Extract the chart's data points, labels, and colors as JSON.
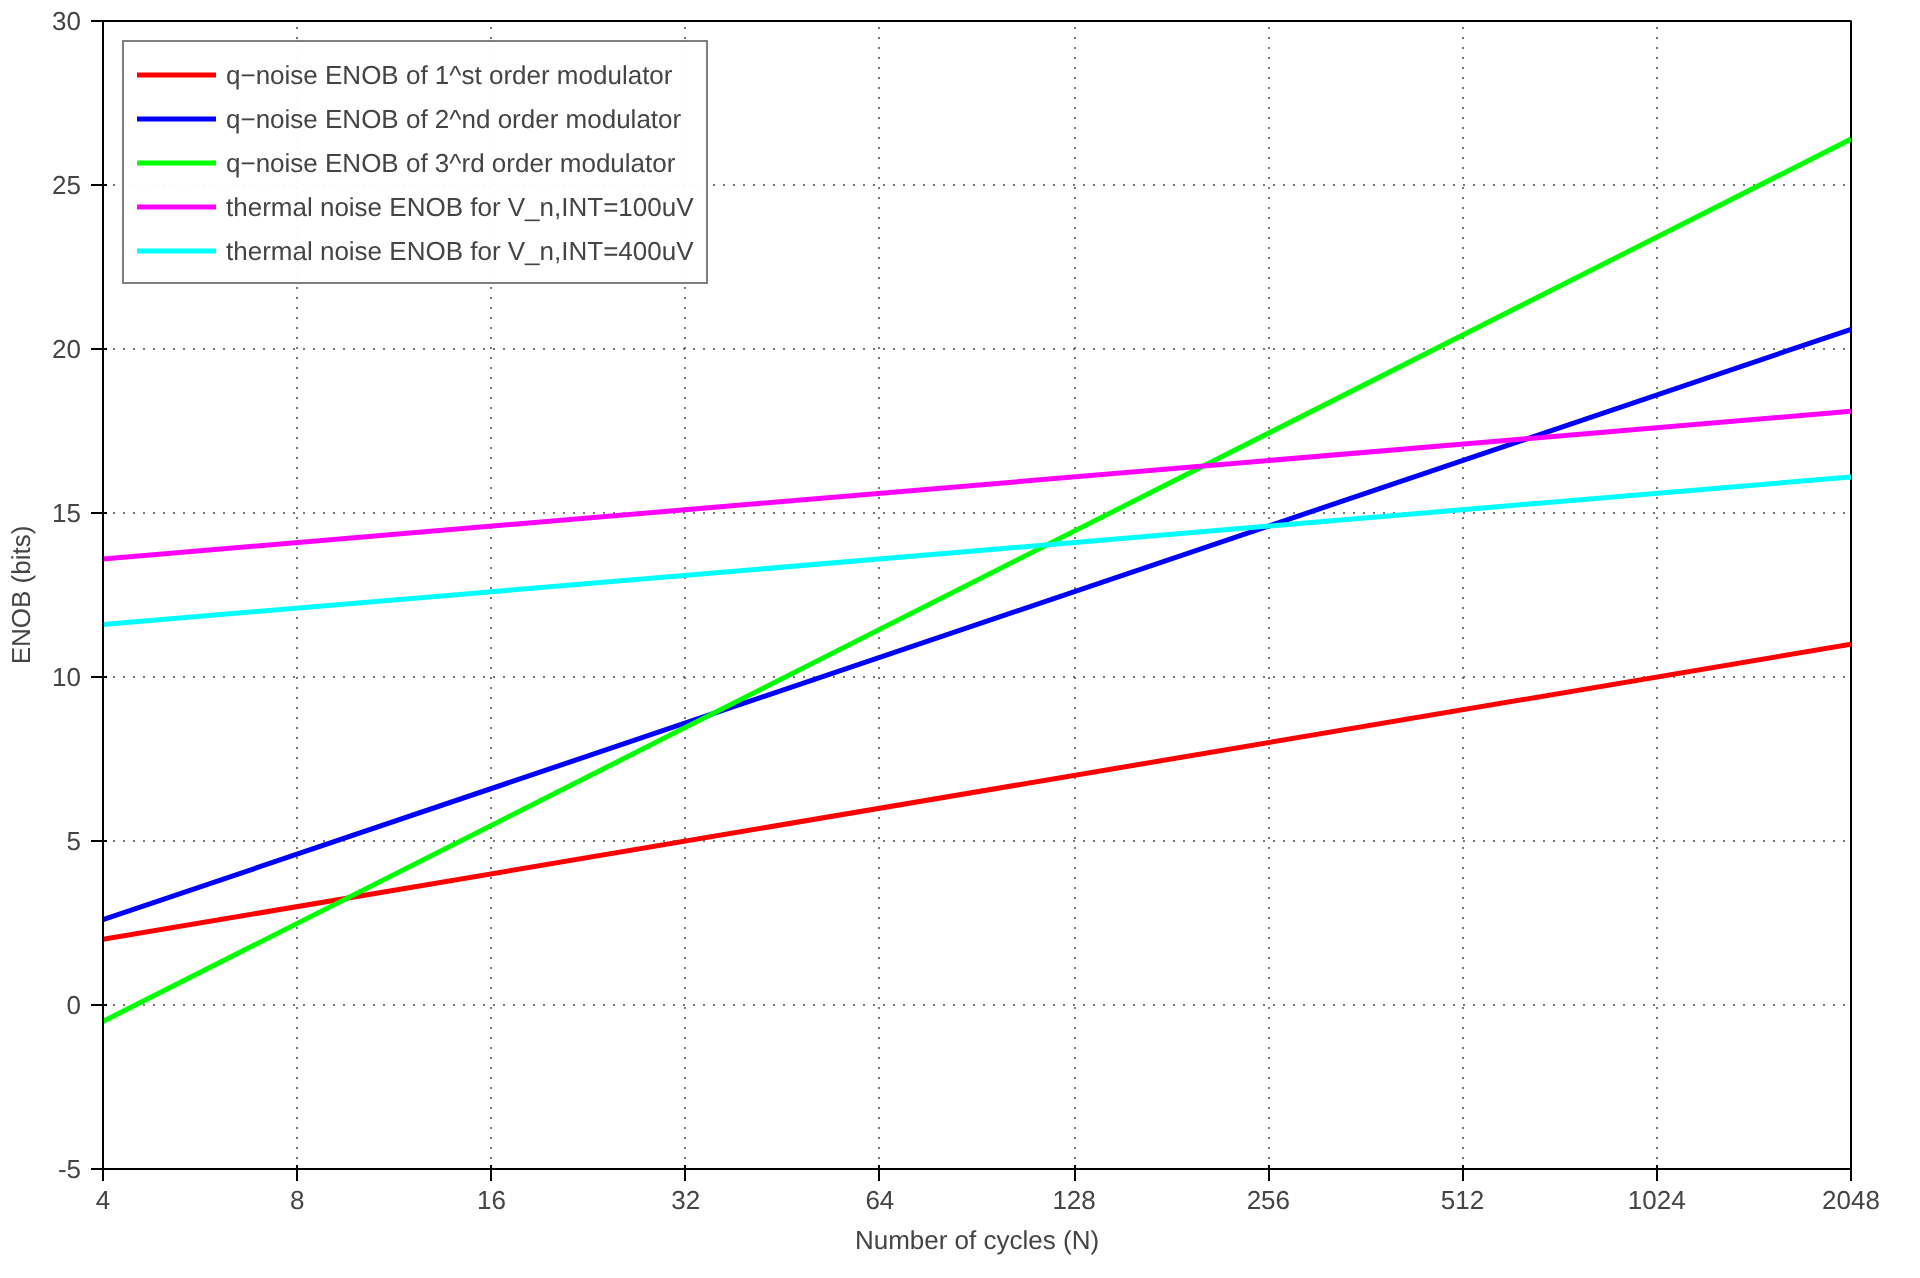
{
  "chart_data": {
    "type": "line",
    "xlabel": "Number of cycles (N)",
    "ylabel": "ENOB (bits)",
    "x": [
      4,
      2048
    ],
    "series": [
      {
        "name": "q−noise ENOB of 1^st order modulator",
        "color": "#ff0000",
        "values": [
          2,
          11
        ]
      },
      {
        "name": "q−noise ENOB of 2^nd order modulator",
        "color": "#0000ff",
        "values": [
          2.6,
          20.6
        ]
      },
      {
        "name": "q−noise ENOB of 3^rd order modulator",
        "color": "#00ff00",
        "values": [
          -0.5,
          26.4
        ]
      },
      {
        "name": "thermal noise ENOB for V_n,INT=100uV",
        "color": "#ff00ff",
        "values": [
          13.6,
          18.1
        ]
      },
      {
        "name": "thermal noise ENOB for V_n,INT=400uV",
        "color": "#00ffff",
        "values": [
          11.6,
          16.1
        ]
      }
    ],
    "log": "x",
    "xlim": [
      4,
      2048
    ],
    "xticks": [
      4,
      8,
      16,
      32,
      64,
      128,
      256,
      512,
      1024,
      2048
    ],
    "ylim": [
      -5,
      30
    ],
    "yticks": [
      -5,
      0,
      5,
      10,
      15,
      20,
      25,
      30
    ],
    "grid": true,
    "legend": "top left",
    "line_style": "solid",
    "marker": "none"
  }
}
